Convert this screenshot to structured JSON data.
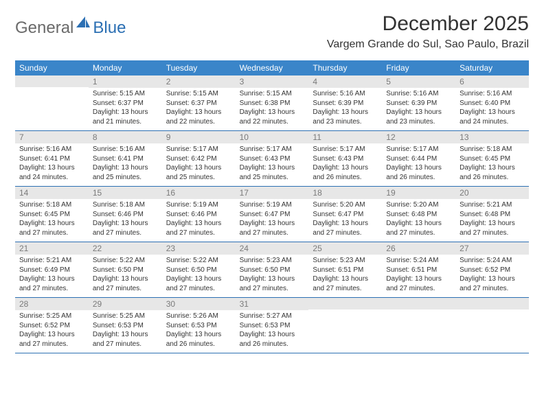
{
  "logo": {
    "text_general": "General",
    "text_blue": "Blue"
  },
  "header": {
    "month_title": "December 2025",
    "location": "Vargem Grande do Sul, Sao Paulo, Brazil"
  },
  "colors": {
    "header_bg": "#3a85c9",
    "header_text": "#ffffff",
    "date_bg": "#e7e7e7",
    "date_text": "#7a7a7a",
    "body_text": "#333333",
    "rule": "#2b6fb3"
  },
  "day_names": [
    "Sunday",
    "Monday",
    "Tuesday",
    "Wednesday",
    "Thursday",
    "Friday",
    "Saturday"
  ],
  "weeks": [
    [
      {
        "date": "",
        "sunrise": "",
        "sunset": "",
        "daylight1": "",
        "daylight2": ""
      },
      {
        "date": "1",
        "sunrise": "Sunrise: 5:15 AM",
        "sunset": "Sunset: 6:37 PM",
        "daylight1": "Daylight: 13 hours",
        "daylight2": "and 21 minutes."
      },
      {
        "date": "2",
        "sunrise": "Sunrise: 5:15 AM",
        "sunset": "Sunset: 6:37 PM",
        "daylight1": "Daylight: 13 hours",
        "daylight2": "and 22 minutes."
      },
      {
        "date": "3",
        "sunrise": "Sunrise: 5:15 AM",
        "sunset": "Sunset: 6:38 PM",
        "daylight1": "Daylight: 13 hours",
        "daylight2": "and 22 minutes."
      },
      {
        "date": "4",
        "sunrise": "Sunrise: 5:16 AM",
        "sunset": "Sunset: 6:39 PM",
        "daylight1": "Daylight: 13 hours",
        "daylight2": "and 23 minutes."
      },
      {
        "date": "5",
        "sunrise": "Sunrise: 5:16 AM",
        "sunset": "Sunset: 6:39 PM",
        "daylight1": "Daylight: 13 hours",
        "daylight2": "and 23 minutes."
      },
      {
        "date": "6",
        "sunrise": "Sunrise: 5:16 AM",
        "sunset": "Sunset: 6:40 PM",
        "daylight1": "Daylight: 13 hours",
        "daylight2": "and 24 minutes."
      }
    ],
    [
      {
        "date": "7",
        "sunrise": "Sunrise: 5:16 AM",
        "sunset": "Sunset: 6:41 PM",
        "daylight1": "Daylight: 13 hours",
        "daylight2": "and 24 minutes."
      },
      {
        "date": "8",
        "sunrise": "Sunrise: 5:16 AM",
        "sunset": "Sunset: 6:41 PM",
        "daylight1": "Daylight: 13 hours",
        "daylight2": "and 25 minutes."
      },
      {
        "date": "9",
        "sunrise": "Sunrise: 5:17 AM",
        "sunset": "Sunset: 6:42 PM",
        "daylight1": "Daylight: 13 hours",
        "daylight2": "and 25 minutes."
      },
      {
        "date": "10",
        "sunrise": "Sunrise: 5:17 AM",
        "sunset": "Sunset: 6:43 PM",
        "daylight1": "Daylight: 13 hours",
        "daylight2": "and 25 minutes."
      },
      {
        "date": "11",
        "sunrise": "Sunrise: 5:17 AM",
        "sunset": "Sunset: 6:43 PM",
        "daylight1": "Daylight: 13 hours",
        "daylight2": "and 26 minutes."
      },
      {
        "date": "12",
        "sunrise": "Sunrise: 5:17 AM",
        "sunset": "Sunset: 6:44 PM",
        "daylight1": "Daylight: 13 hours",
        "daylight2": "and 26 minutes."
      },
      {
        "date": "13",
        "sunrise": "Sunrise: 5:18 AM",
        "sunset": "Sunset: 6:45 PM",
        "daylight1": "Daylight: 13 hours",
        "daylight2": "and 26 minutes."
      }
    ],
    [
      {
        "date": "14",
        "sunrise": "Sunrise: 5:18 AM",
        "sunset": "Sunset: 6:45 PM",
        "daylight1": "Daylight: 13 hours",
        "daylight2": "and 27 minutes."
      },
      {
        "date": "15",
        "sunrise": "Sunrise: 5:18 AM",
        "sunset": "Sunset: 6:46 PM",
        "daylight1": "Daylight: 13 hours",
        "daylight2": "and 27 minutes."
      },
      {
        "date": "16",
        "sunrise": "Sunrise: 5:19 AM",
        "sunset": "Sunset: 6:46 PM",
        "daylight1": "Daylight: 13 hours",
        "daylight2": "and 27 minutes."
      },
      {
        "date": "17",
        "sunrise": "Sunrise: 5:19 AM",
        "sunset": "Sunset: 6:47 PM",
        "daylight1": "Daylight: 13 hours",
        "daylight2": "and 27 minutes."
      },
      {
        "date": "18",
        "sunrise": "Sunrise: 5:20 AM",
        "sunset": "Sunset: 6:47 PM",
        "daylight1": "Daylight: 13 hours",
        "daylight2": "and 27 minutes."
      },
      {
        "date": "19",
        "sunrise": "Sunrise: 5:20 AM",
        "sunset": "Sunset: 6:48 PM",
        "daylight1": "Daylight: 13 hours",
        "daylight2": "and 27 minutes."
      },
      {
        "date": "20",
        "sunrise": "Sunrise: 5:21 AM",
        "sunset": "Sunset: 6:48 PM",
        "daylight1": "Daylight: 13 hours",
        "daylight2": "and 27 minutes."
      }
    ],
    [
      {
        "date": "21",
        "sunrise": "Sunrise: 5:21 AM",
        "sunset": "Sunset: 6:49 PM",
        "daylight1": "Daylight: 13 hours",
        "daylight2": "and 27 minutes."
      },
      {
        "date": "22",
        "sunrise": "Sunrise: 5:22 AM",
        "sunset": "Sunset: 6:50 PM",
        "daylight1": "Daylight: 13 hours",
        "daylight2": "and 27 minutes."
      },
      {
        "date": "23",
        "sunrise": "Sunrise: 5:22 AM",
        "sunset": "Sunset: 6:50 PM",
        "daylight1": "Daylight: 13 hours",
        "daylight2": "and 27 minutes."
      },
      {
        "date": "24",
        "sunrise": "Sunrise: 5:23 AM",
        "sunset": "Sunset: 6:50 PM",
        "daylight1": "Daylight: 13 hours",
        "daylight2": "and 27 minutes."
      },
      {
        "date": "25",
        "sunrise": "Sunrise: 5:23 AM",
        "sunset": "Sunset: 6:51 PM",
        "daylight1": "Daylight: 13 hours",
        "daylight2": "and 27 minutes."
      },
      {
        "date": "26",
        "sunrise": "Sunrise: 5:24 AM",
        "sunset": "Sunset: 6:51 PM",
        "daylight1": "Daylight: 13 hours",
        "daylight2": "and 27 minutes."
      },
      {
        "date": "27",
        "sunrise": "Sunrise: 5:24 AM",
        "sunset": "Sunset: 6:52 PM",
        "daylight1": "Daylight: 13 hours",
        "daylight2": "and 27 minutes."
      }
    ],
    [
      {
        "date": "28",
        "sunrise": "Sunrise: 5:25 AM",
        "sunset": "Sunset: 6:52 PM",
        "daylight1": "Daylight: 13 hours",
        "daylight2": "and 27 minutes."
      },
      {
        "date": "29",
        "sunrise": "Sunrise: 5:25 AM",
        "sunset": "Sunset: 6:53 PM",
        "daylight1": "Daylight: 13 hours",
        "daylight2": "and 27 minutes."
      },
      {
        "date": "30",
        "sunrise": "Sunrise: 5:26 AM",
        "sunset": "Sunset: 6:53 PM",
        "daylight1": "Daylight: 13 hours",
        "daylight2": "and 26 minutes."
      },
      {
        "date": "31",
        "sunrise": "Sunrise: 5:27 AM",
        "sunset": "Sunset: 6:53 PM",
        "daylight1": "Daylight: 13 hours",
        "daylight2": "and 26 minutes."
      },
      {
        "date": "",
        "sunrise": "",
        "sunset": "",
        "daylight1": "",
        "daylight2": ""
      },
      {
        "date": "",
        "sunrise": "",
        "sunset": "",
        "daylight1": "",
        "daylight2": ""
      },
      {
        "date": "",
        "sunrise": "",
        "sunset": "",
        "daylight1": "",
        "daylight2": ""
      }
    ]
  ]
}
